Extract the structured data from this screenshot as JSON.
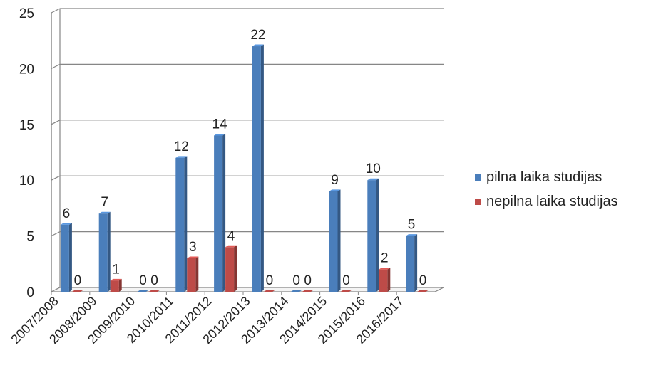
{
  "chart_data": {
    "type": "bar",
    "title": "",
    "xlabel": "",
    "ylabel": "",
    "ylim": [
      0,
      25
    ],
    "yticks": [
      0,
      5,
      10,
      15,
      20,
      25
    ],
    "grid": true,
    "legend_position": "right",
    "categories": [
      "2007/2008",
      "2008/2009",
      "2009/2010",
      "2010/2011",
      "2011/2012",
      "2012/2013",
      "2013/2014",
      "2014/2015",
      "2015/2016",
      "2016/2017"
    ],
    "series": [
      {
        "name": "pilna laika studijas",
        "color": "#4a7ebb",
        "values": [
          6,
          7,
          0,
          12,
          14,
          22,
          0,
          9,
          10,
          5
        ]
      },
      {
        "name": "nepilna laika studijas",
        "color": "#be4b48",
        "values": [
          0,
          1,
          0,
          3,
          4,
          0,
          0,
          0,
          2,
          0
        ]
      }
    ]
  }
}
